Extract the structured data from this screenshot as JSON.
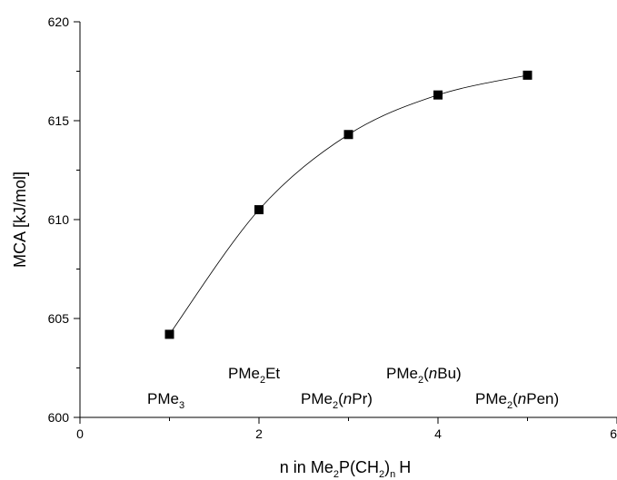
{
  "chart_data": {
    "type": "scatter",
    "x": [
      1,
      2,
      3,
      4,
      5
    ],
    "y": [
      604.2,
      610.5,
      614.3,
      616.3,
      617.3
    ],
    "fit_curve": true,
    "xlim": [
      0,
      6
    ],
    "ylim": [
      600,
      620
    ],
    "x_ticks": [
      "0",
      "2",
      "4",
      "6"
    ],
    "y_ticks": [
      "600",
      "605",
      "610",
      "615",
      "620"
    ],
    "xlabel": {
      "a": "n in Me",
      "s1": "2",
      "b": "P(CH",
      "s2": "2",
      "c": ")",
      "s3": "n",
      "d": "H"
    },
    "ylabel": "MCA [kJ/mol]",
    "annotations": [
      {
        "label": {
          "a": "PMe",
          "s": "3",
          "b": ""
        }
      },
      {
        "label": {
          "a": "PMe",
          "s": "2",
          "b": "Et"
        }
      },
      {
        "label": {
          "a": "PMe",
          "s": "2",
          "b": "(nPr)"
        }
      },
      {
        "label": {
          "a": "PMe",
          "s": "2",
          "b": "(nBu)"
        }
      },
      {
        "label": {
          "a": "PMe",
          "s": "2",
          "b": "(nPen)"
        }
      }
    ],
    "grid": false,
    "marker": "square",
    "colors": {
      "marker": "#000000",
      "curve": "#000000",
      "axis": "#000000"
    }
  }
}
